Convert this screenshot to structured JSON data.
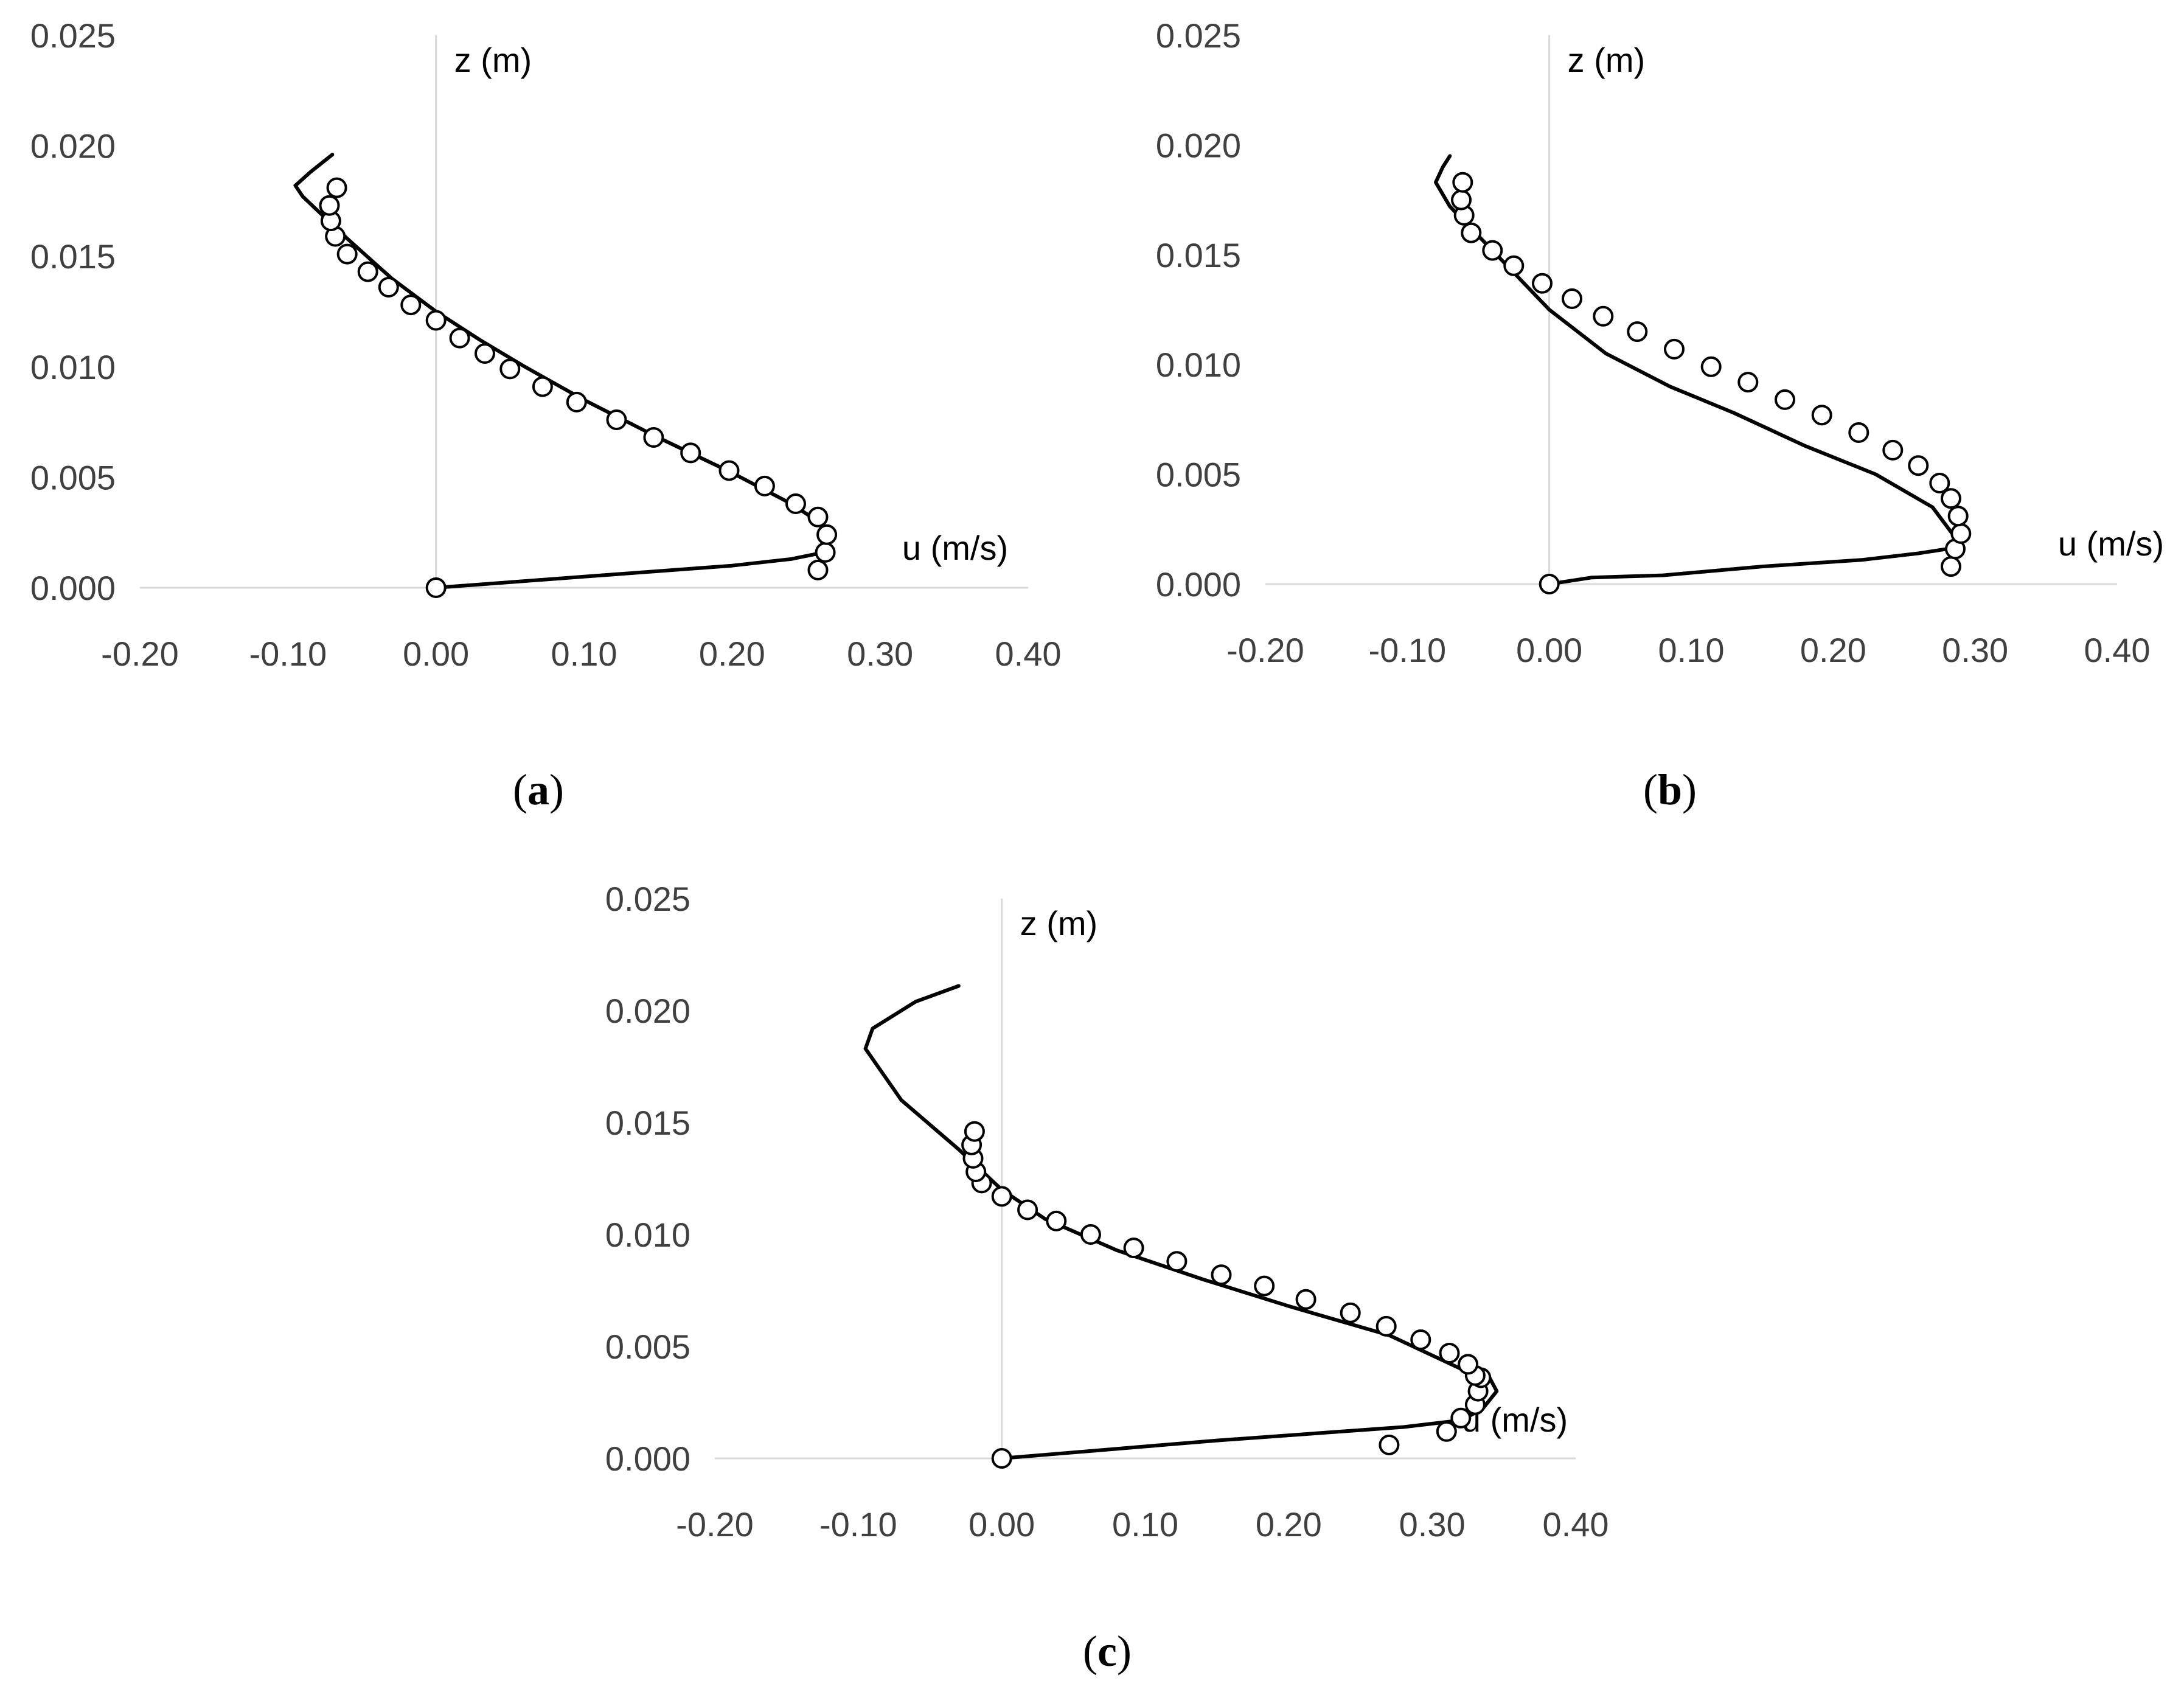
{
  "chart_data": [
    {
      "type": "scatter",
      "panel": "a",
      "caption_letter": "a",
      "title": "",
      "xlabel": "u (m/s)",
      "ylabel": "z (m)",
      "xlim": [
        -0.2,
        0.4
      ],
      "ylim": [
        0.0,
        0.025
      ],
      "x_ticks": [
        "-0.20",
        "-0.10",
        "0.00",
        "0.10",
        "0.20",
        "0.30",
        "0.40"
      ],
      "y_ticks": [
        "0.000",
        "0.005",
        "0.010",
        "0.015",
        "0.020",
        "0.025"
      ],
      "grid": false,
      "legend": "none",
      "series": [
        {
          "kind": "line",
          "x": [
            0.0,
            0.1,
            0.2,
            0.24,
            0.262,
            0.265,
            0.258,
            0.24,
            0.2,
            0.15,
            0.1,
            0.06,
            0.03,
            0.0,
            -0.03,
            -0.06,
            -0.09,
            -0.095,
            -0.085,
            -0.07
          ],
          "y": [
            0.0,
            0.0005,
            0.001,
            0.0013,
            0.0016,
            0.0022,
            0.003,
            0.0038,
            0.0052,
            0.0068,
            0.0085,
            0.01,
            0.0112,
            0.0125,
            0.014,
            0.0158,
            0.0177,
            0.0182,
            0.0188,
            0.0196
          ]
        },
        {
          "kind": "points",
          "x": [
            0.0,
            0.258,
            0.263,
            0.264,
            0.258,
            0.243,
            0.222,
            0.198,
            0.172,
            0.147,
            0.122,
            0.095,
            0.072,
            0.05,
            0.033,
            0.016,
            0.0,
            -0.017,
            -0.032,
            -0.046,
            -0.06,
            -0.068,
            -0.071,
            -0.072,
            -0.067
          ],
          "y": [
            0.0,
            0.0008,
            0.0016,
            0.0024,
            0.0032,
            0.0038,
            0.0046,
            0.0053,
            0.0061,
            0.0068,
            0.0076,
            0.0084,
            0.0091,
            0.0099,
            0.0106,
            0.0113,
            0.0121,
            0.0128,
            0.0136,
            0.0143,
            0.0151,
            0.0159,
            0.0166,
            0.0173,
            0.0181
          ]
        }
      ]
    },
    {
      "type": "scatter",
      "panel": "b",
      "caption_letter": "b",
      "title": "",
      "xlabel": "u (m/s)",
      "ylabel": "z (m)",
      "xlim": [
        -0.2,
        0.4
      ],
      "ylim": [
        0.0,
        0.025
      ],
      "x_ticks": [
        "-0.20",
        "-0.10",
        "0.00",
        "0.10",
        "0.20",
        "0.30",
        "0.40"
      ],
      "y_ticks": [
        "0.000",
        "0.005",
        "0.010",
        "0.015",
        "0.020",
        "0.025"
      ],
      "grid": false,
      "legend": "none",
      "series": [
        {
          "kind": "line",
          "x": [
            0.0,
            0.03,
            0.08,
            0.15,
            0.22,
            0.26,
            0.28,
            0.29,
            0.285,
            0.27,
            0.23,
            0.18,
            0.13,
            0.085,
            0.04,
            0.0,
            -0.04,
            -0.07,
            -0.08,
            -0.075,
            -0.07
          ],
          "y": [
            0.0,
            0.0003,
            0.0004,
            0.0008,
            0.0011,
            0.0014,
            0.0016,
            0.0018,
            0.0022,
            0.0035,
            0.005,
            0.0063,
            0.0078,
            0.009,
            0.0105,
            0.0125,
            0.0152,
            0.0172,
            0.0183,
            0.019,
            0.0195
          ]
        },
        {
          "kind": "points",
          "x": [
            0.0,
            0.283,
            0.286,
            0.29,
            0.288,
            0.283,
            0.275,
            0.26,
            0.242,
            0.218,
            0.192,
            0.166,
            0.14,
            0.114,
            0.088,
            0.062,
            0.038,
            0.016,
            -0.005,
            -0.025,
            -0.04,
            -0.055,
            -0.06,
            -0.062,
            -0.061
          ],
          "y": [
            0.0,
            0.0008,
            0.0016,
            0.0023,
            0.0031,
            0.0039,
            0.0046,
            0.0054,
            0.0061,
            0.0069,
            0.0077,
            0.0084,
            0.0092,
            0.0099,
            0.0107,
            0.0115,
            0.0122,
            0.013,
            0.0137,
            0.0145,
            0.0152,
            0.016,
            0.0168,
            0.0175,
            0.0183
          ]
        }
      ]
    },
    {
      "type": "scatter",
      "panel": "c",
      "caption_letter": "c",
      "title": "",
      "xlabel": "u (m/s)",
      "ylabel": "z (m)",
      "xlim": [
        -0.2,
        0.4
      ],
      "ylim": [
        0.0,
        0.025
      ],
      "x_ticks": [
        "-0.20",
        "-0.10",
        "0.00",
        "0.10",
        "0.20",
        "0.30",
        "0.40"
      ],
      "y_ticks": [
        "0.000",
        "0.005",
        "0.010",
        "0.015",
        "0.020",
        "0.025"
      ],
      "grid": false,
      "legend": "none",
      "series": [
        {
          "kind": "line",
          "x": [
            0.0,
            0.15,
            0.28,
            0.32,
            0.335,
            0.345,
            0.34,
            0.32,
            0.27,
            0.2,
            0.14,
            0.08,
            0.03,
            0.0,
            -0.03,
            -0.07,
            -0.095,
            -0.09,
            -0.06,
            -0.03
          ],
          "y": [
            0.0,
            0.0008,
            0.0014,
            0.0017,
            0.0022,
            0.003,
            0.0036,
            0.004,
            0.0055,
            0.0068,
            0.008,
            0.0093,
            0.0107,
            0.012,
            0.0138,
            0.016,
            0.0183,
            0.0192,
            0.0204,
            0.0211
          ]
        },
        {
          "kind": "points",
          "x": [
            0.0,
            0.27,
            0.31,
            0.32,
            0.33,
            0.332,
            0.334,
            0.33,
            0.325,
            0.312,
            0.292,
            0.268,
            0.243,
            0.212,
            0.183,
            0.153,
            0.122,
            0.092,
            0.062,
            0.038,
            0.018,
            0.0,
            -0.014,
            -0.018,
            -0.02,
            -0.021,
            -0.019
          ],
          "y": [
            0.0,
            0.0006,
            0.0012,
            0.0018,
            0.0024,
            0.003,
            0.0036,
            0.0037,
            0.0042,
            0.0047,
            0.0053,
            0.0059,
            0.0065,
            0.0071,
            0.0077,
            0.0082,
            0.0088,
            0.0094,
            0.01,
            0.0106,
            0.0111,
            0.0117,
            0.0123,
            0.0128,
            0.0134,
            0.014,
            0.0146
          ]
        }
      ]
    }
  ]
}
